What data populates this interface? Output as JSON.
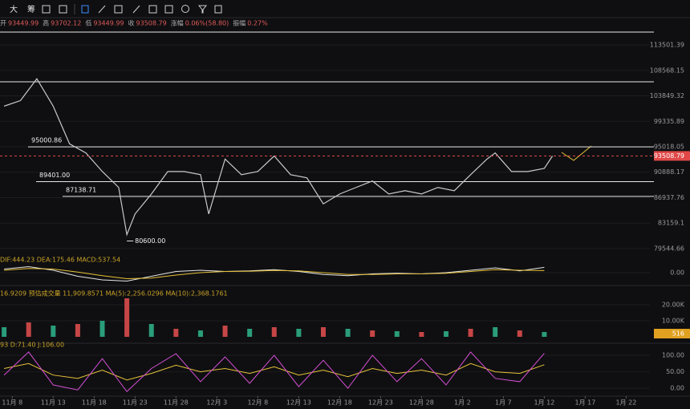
{
  "toolbar": {
    "items": [
      "大",
      "筹"
    ]
  },
  "info": [
    {
      "label": "开",
      "value": "93449.99"
    },
    {
      "label": "高",
      "value": "93702.12"
    },
    {
      "label": "低",
      "value": "93449.99"
    },
    {
      "label": "收",
      "value": "93508.79"
    },
    {
      "label": "涨幅",
      "value": "0.06%(58.80)"
    },
    {
      "label": "振幅",
      "value": "0.27%"
    }
  ],
  "chart_data": [
    {
      "type": "line",
      "log": true,
      "color": "#c9c9cc",
      "x": [
        -1,
        1,
        3,
        5,
        7,
        9,
        11,
        13,
        14,
        15,
        17,
        19,
        21,
        23,
        24,
        26,
        28,
        30,
        32,
        34,
        36,
        38,
        40,
        42,
        44,
        46,
        48,
        50,
        52,
        54,
        56,
        58,
        59,
        61,
        63,
        65,
        66
      ],
      "values": [
        102000,
        103000,
        107000,
        102000,
        95500,
        94000,
        91000,
        88500,
        81500,
        84500,
        87500,
        91000,
        91000,
        90500,
        84500,
        93000,
        90500,
        91000,
        93500,
        90500,
        90000,
        86000,
        87500,
        88500,
        89500,
        87500,
        88000,
        87500,
        88500,
        88000,
        90500,
        93000,
        94000,
        91000,
        91000,
        91500,
        93500
      ],
      "xlim": [
        -1.5,
        77.9
      ],
      "ylim": [
        78430,
        116740
      ],
      "yticks": [
        113501.39,
        108568.15,
        103849.32,
        99335.89,
        95018.05,
        90888.17,
        86937.76,
        83159.1,
        79544.66
      ],
      "hlines": [
        116080,
        106440
      ],
      "levels": [
        {
          "value": 95000.86,
          "label": "95000.86"
        },
        {
          "value": 89401,
          "label": "89401.00"
        },
        {
          "value": 87138.71,
          "label": "87138.71"
        }
      ],
      "low": {
        "x": 14,
        "value": 80600,
        "label": "80600.00"
      },
      "last": 93508.79
    },
    {
      "type": "line",
      "title": "DIF:444.23 DEA:175.46 MACD:537.54",
      "x": [
        -1,
        2,
        5,
        8,
        11,
        14,
        17,
        20,
        23,
        26,
        29,
        32,
        35,
        38,
        41,
        44,
        47,
        50,
        53,
        56,
        59,
        62,
        65
      ],
      "series": [
        {
          "name": "DIF",
          "color": "#e6e6e6",
          "values": [
            300,
            500,
            200,
            -300,
            -600,
            -700,
            -300,
            100,
            200,
            100,
            150,
            250,
            100,
            -150,
            -250,
            -100,
            -50,
            -100,
            0,
            200,
            400,
            150,
            444.23
          ]
        },
        {
          "name": "DEA",
          "color": "#e7c23a",
          "values": [
            200,
            350,
            300,
            50,
            -250,
            -500,
            -450,
            -200,
            0,
            100,
            120,
            180,
            150,
            0,
            -150,
            -150,
            -100,
            -100,
            -50,
            100,
            250,
            200,
            175.46
          ]
        }
      ],
      "xlim": [
        -1.5,
        77.9
      ],
      "ylim": [
        -800,
        800
      ],
      "yticks": [
        {
          "value": 0,
          "label": "0.00"
        }
      ]
    },
    {
      "type": "bar",
      "title": "16.9209 预估成交量 11,909.8571 MA(5):2,256.0296 MA(10):2,368.1761",
      "color": "#2a9d7a",
      "x": [
        -1,
        2,
        5,
        8,
        11,
        14,
        17,
        20,
        23,
        26,
        29,
        32,
        35,
        38,
        41,
        44,
        47,
        50,
        53,
        56,
        59,
        62,
        65
      ],
      "values": [
        6000,
        9000,
        7000,
        8000,
        10000,
        24000,
        8000,
        5000,
        4000,
        7000,
        5000,
        6000,
        5000,
        6000,
        5000,
        4000,
        3500,
        3000,
        3500,
        5000,
        6000,
        4000,
        3000
      ],
      "xlim": [
        -1.5,
        77.9
      ],
      "ylim": [
        0,
        25000
      ],
      "yticks": [
        {
          "value": 20000,
          "label": "20.00K"
        },
        {
          "value": 10000,
          "label": "10.00K"
        }
      ],
      "last": 516
    },
    {
      "type": "line",
      "title": "93 D:71.40 J:106.00",
      "x": [
        -1,
        2,
        5,
        8,
        11,
        14,
        17,
        20,
        23,
        26,
        29,
        32,
        35,
        38,
        41,
        44,
        47,
        50,
        53,
        56,
        59,
        62,
        65
      ],
      "series": [
        {
          "name": "D",
          "color": "#e7c23a",
          "values": [
            60,
            75,
            40,
            30,
            55,
            25,
            45,
            70,
            50,
            60,
            45,
            65,
            40,
            55,
            35,
            60,
            45,
            55,
            40,
            75,
            50,
            45,
            71.4
          ]
        },
        {
          "name": "J",
          "color": "#d64fd6",
          "values": [
            40,
            110,
            10,
            -5,
            90,
            -10,
            60,
            105,
            20,
            95,
            15,
            100,
            5,
            85,
            0,
            100,
            20,
            90,
            10,
            110,
            30,
            20,
            106
          ]
        }
      ],
      "xlim": [
        -1.5,
        77.9
      ],
      "ylim": [
        -24,
        122
      ],
      "yticks": [
        {
          "value": 100,
          "label": "100.00"
        },
        {
          "value": 50,
          "label": "50.00"
        },
        {
          "value": 0,
          "label": "0.00"
        }
      ],
      "xticks": [
        {
          "value": 0,
          "label": "11月 8"
        },
        {
          "value": 5,
          "label": "11月 13"
        },
        {
          "value": 10,
          "label": "11月 18"
        },
        {
          "value": 15,
          "label": "11月 23"
        },
        {
          "value": 20,
          "label": "11月 28"
        },
        {
          "value": 25,
          "label": "12月 3"
        },
        {
          "value": 30,
          "label": "12月 8"
        },
        {
          "value": 35,
          "label": "12月 13"
        },
        {
          "value": 40,
          "label": "12月 18"
        },
        {
          "value": 45,
          "label": "12月 23"
        },
        {
          "value": 50,
          "label": "12月 28"
        },
        {
          "value": 55,
          "label": "1月 2"
        },
        {
          "value": 60,
          "label": "1月 7"
        },
        {
          "value": 65,
          "label": "1月 12"
        },
        {
          "value": 70,
          "label": "1月 17"
        },
        {
          "value": 75,
          "label": "1月 22"
        }
      ]
    }
  ]
}
